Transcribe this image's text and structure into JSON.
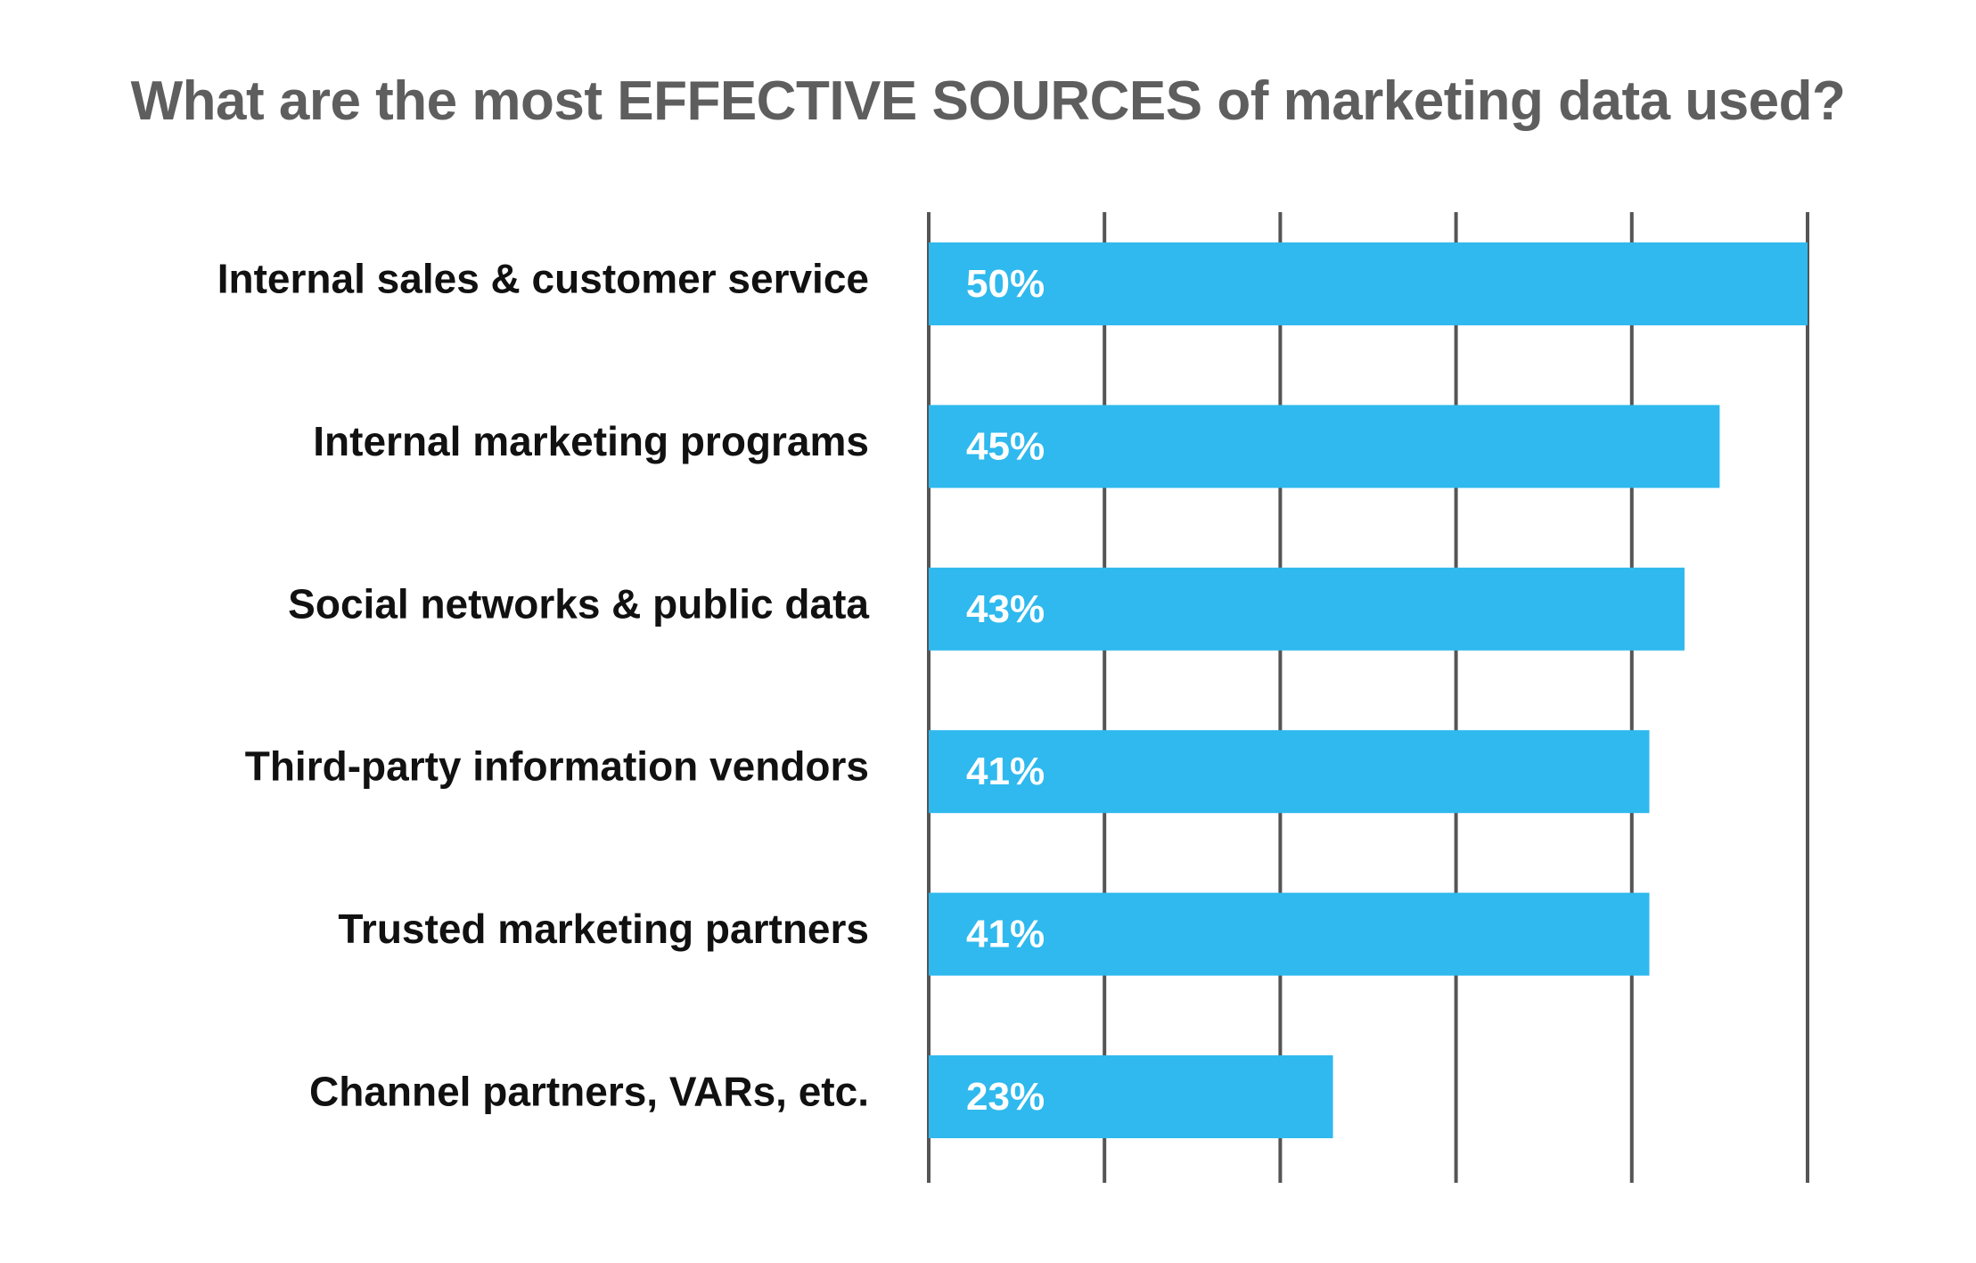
{
  "colors": {
    "bar": "#2fb9ee",
    "grid": "#555555",
    "title": "#5e5e5e",
    "label": "#111111",
    "value_text": "#ffffff"
  },
  "chart_data": {
    "type": "bar",
    "orientation": "horizontal",
    "title": "What are the most EFFECTIVE SOURCES of marketing data used?",
    "xlabel": "",
    "ylabel": "",
    "categories": [
      "Internal sales & customer service",
      "Internal marketing programs",
      "Social networks & public data",
      "Third-party information vendors",
      "Trusted marketing partners",
      "Channel partners, VARs, etc."
    ],
    "values": [
      50,
      45,
      43,
      41,
      41,
      23
    ],
    "value_labels": [
      "50%",
      "45%",
      "43%",
      "41%",
      "41%",
      "23%"
    ],
    "xlim": [
      0,
      50
    ],
    "grid": true,
    "grid_step": 10,
    "legend": "none"
  }
}
